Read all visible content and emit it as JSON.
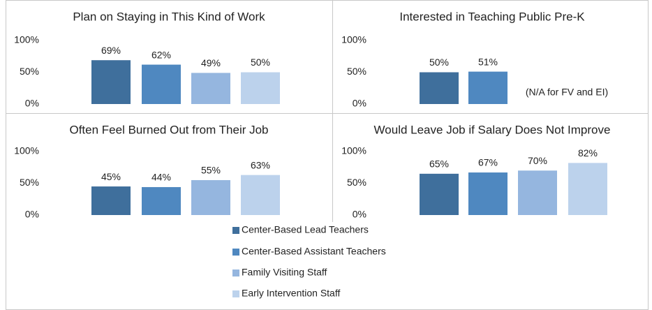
{
  "legend": {
    "items": [
      {
        "name": "Center-Based Lead Teachers",
        "color": "#3f6f9c"
      },
      {
        "name": "Center-Based Assistant Teachers",
        "color": "#4f88c0"
      },
      {
        "name": "Family Visiting Staff",
        "color": "#95b6df"
      },
      {
        "name": "Early Intervention Staff",
        "color": "#bcd2ec"
      }
    ]
  },
  "chart_data": [
    {
      "type": "bar",
      "title": "Plan on Staying in This Kind of Work",
      "values": [
        69,
        62,
        49,
        50
      ],
      "value_labels": [
        "69%",
        "62%",
        "49%",
        "50%"
      ],
      "ylim": [
        0,
        100
      ],
      "yticks": [
        {
          "value": 0,
          "label": "0%"
        },
        {
          "value": 50,
          "label": "50%"
        },
        {
          "value": 100,
          "label": "100%"
        }
      ]
    },
    {
      "type": "bar",
      "title": "Interested in Teaching Public Pre-K",
      "values": [
        50,
        51,
        null,
        null
      ],
      "value_labels": [
        "50%",
        "51%",
        null,
        null
      ],
      "annotation": "(N/A for FV and EI)",
      "ylim": [
        0,
        100
      ],
      "yticks": [
        {
          "value": 0,
          "label": "0%"
        },
        {
          "value": 50,
          "label": "50%"
        },
        {
          "value": 100,
          "label": "100%"
        }
      ]
    },
    {
      "type": "bar",
      "title": "Often Feel Burned Out from Their Job",
      "values": [
        45,
        44,
        55,
        63
      ],
      "value_labels": [
        "45%",
        "44%",
        "55%",
        "63%"
      ],
      "ylim": [
        0,
        100
      ],
      "yticks": [
        {
          "value": 0,
          "label": "0%"
        },
        {
          "value": 50,
          "label": "50%"
        },
        {
          "value": 100,
          "label": "100%"
        }
      ]
    },
    {
      "type": "bar",
      "title": "Would Leave Job if Salary Does Not Improve",
      "values": [
        65,
        67,
        70,
        82
      ],
      "value_labels": [
        "65%",
        "67%",
        "70%",
        "82%"
      ],
      "ylim": [
        0,
        100
      ],
      "yticks": [
        {
          "value": 0,
          "label": "0%"
        },
        {
          "value": 50,
          "label": "50%"
        },
        {
          "value": 100,
          "label": "100%"
        }
      ]
    }
  ]
}
